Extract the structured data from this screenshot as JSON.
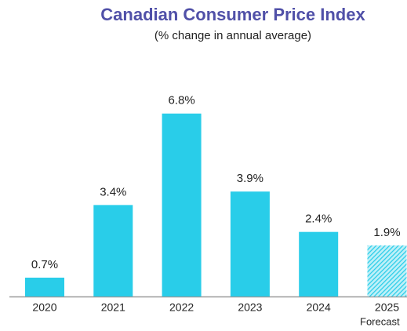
{
  "chart_data": {
    "type": "bar",
    "title": "Canadian Consumer Price Index",
    "subtitle": "(% change in annual average)",
    "categories": [
      "2020",
      "2021",
      "2022",
      "2023",
      "2024",
      "2025"
    ],
    "values": [
      0.7,
      3.4,
      6.8,
      3.9,
      2.4,
      1.9
    ],
    "value_labels": [
      "0.7%",
      "3.4%",
      "6.8%",
      "3.9%",
      "2.4%",
      "1.9%"
    ],
    "hatched": [
      false,
      false,
      false,
      false,
      false,
      true
    ],
    "annotation": "Forecast",
    "color": "#29cde9"
  }
}
